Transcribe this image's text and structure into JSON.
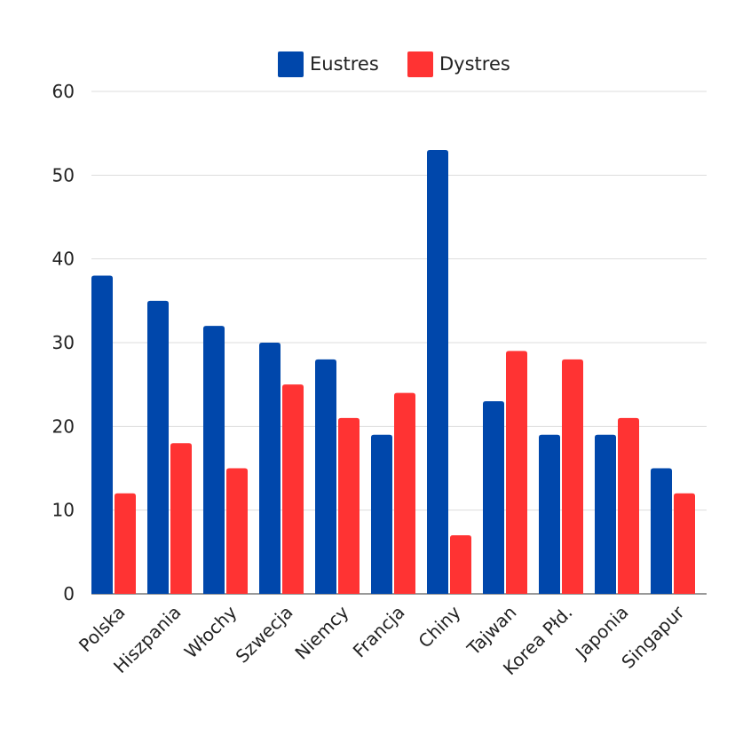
{
  "chart_data": {
    "type": "bar",
    "categories": [
      "Polska",
      "Hiszpania",
      "Włochy",
      "Szwecja",
      "Niemcy",
      "Francja",
      "Chiny",
      "Tajwan",
      "Korea Płd.",
      "Japonia",
      "Singapur"
    ],
    "series": [
      {
        "name": "Eustres",
        "color": "#0047ab",
        "values": [
          38,
          35,
          32,
          30,
          28,
          19,
          53,
          23,
          19,
          19,
          15
        ]
      },
      {
        "name": "Dystres",
        "color": "#ff3333",
        "values": [
          12,
          18,
          15,
          25,
          21,
          24,
          7,
          29,
          28,
          21,
          12
        ]
      }
    ],
    "ylim": [
      0,
      60
    ],
    "yticks": [
      0,
      10,
      20,
      30,
      40,
      50,
      60
    ],
    "grid": true,
    "legend_position": "top-center",
    "xlabel": "",
    "ylabel": "",
    "title": ""
  }
}
